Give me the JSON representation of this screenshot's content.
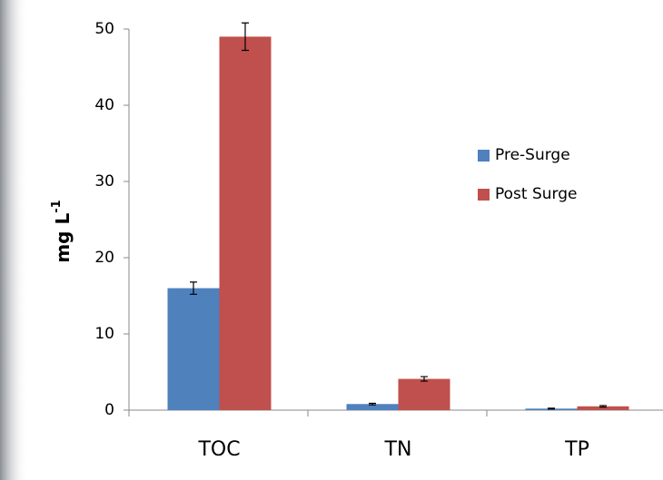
{
  "chart_data": {
    "type": "bar",
    "y_label": "mg L",
    "y_label_superscript": "-1",
    "categories": [
      "TOC",
      "TN",
      "TP"
    ],
    "series": [
      {
        "name": "Pre-Surge",
        "color": "#4f81bd",
        "values": [
          16,
          0.8,
          0.2
        ],
        "errors": [
          0.8,
          0.1,
          0.05
        ]
      },
      {
        "name": "Post Surge",
        "color": "#c0504d",
        "values": [
          49,
          4.1,
          0.5
        ],
        "errors": [
          1.8,
          0.3,
          0.1
        ]
      }
    ],
    "ylim": [
      0,
      50
    ],
    "yticks": [
      0,
      10,
      20,
      30,
      40,
      50
    ],
    "legend": "right"
  }
}
